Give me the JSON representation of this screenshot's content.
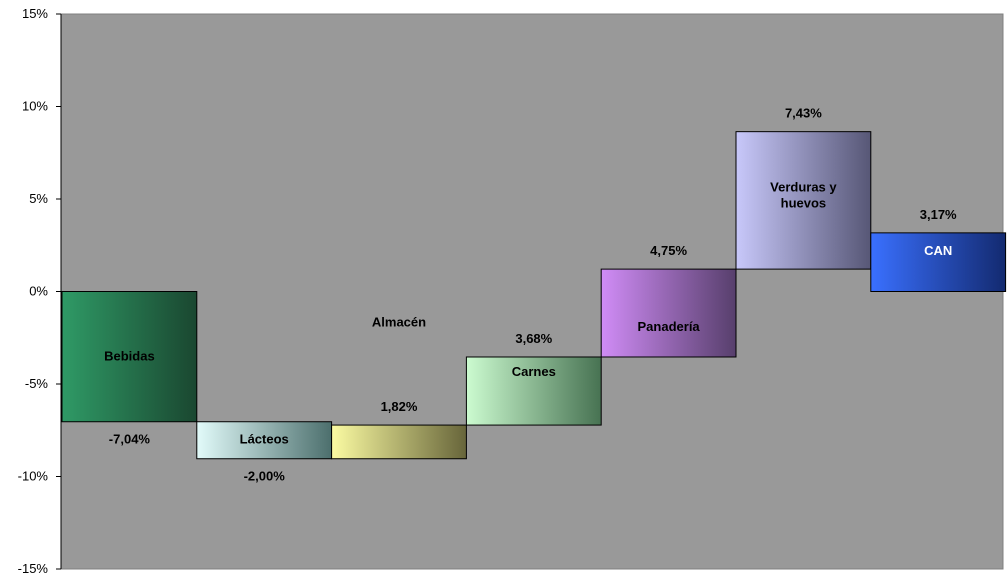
{
  "chart_data": {
    "type": "bar",
    "categories": [
      "Bebidas",
      "Lácteos",
      "Almacén",
      "Carnes",
      "Panadería",
      "Verduras y huevos",
      "CAN"
    ],
    "category_lines": [
      [
        "Bebidas"
      ],
      [
        "Lácteos"
      ],
      [
        "Almacén"
      ],
      [
        "Carnes"
      ],
      [
        "Panadería"
      ],
      [
        "Verduras y",
        "huevos"
      ],
      [
        "CAN"
      ]
    ],
    "values": [
      -7.04,
      -2.0,
      1.82,
      3.68,
      4.75,
      7.43,
      3.17
    ],
    "value_labels": [
      "-7,04%",
      "-2,00%",
      "1,82%",
      "3,68%",
      "4,75%",
      "7,43%",
      "3,17%"
    ],
    "colors": [
      [
        "#2f9a66",
        "#1a4730"
      ],
      [
        "#e2fbfa",
        "#4c6f6d"
      ],
      [
        "#fbfba2",
        "#67653a"
      ],
      [
        "#ccfbd0",
        "#477252"
      ],
      [
        "#d08cf6",
        "#573f6c"
      ],
      [
        "#c8c8fa",
        "#575776"
      ],
      [
        "#3a70ff",
        "#132a70"
      ]
    ],
    "ylim": [
      -15,
      15
    ],
    "y_ticks": [
      15,
      10,
      5,
      0,
      -5,
      -10,
      -15
    ],
    "y_tick_labels": [
      "15%",
      "10%",
      "5%",
      "0%",
      "-5%",
      "-10%",
      "-15%"
    ],
    "plot_background": "#999999",
    "grid": false,
    "legend": "none",
    "title": "",
    "xlabel": "",
    "ylabel": ""
  }
}
